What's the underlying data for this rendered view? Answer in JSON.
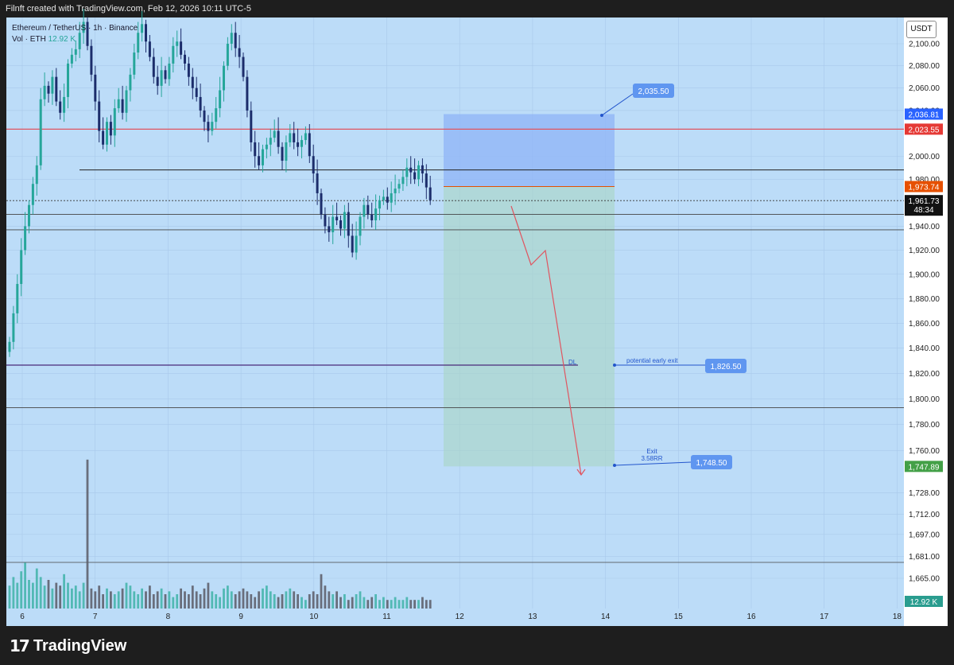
{
  "header": {
    "caption": "Filnft created with TradingView.com, Feb 12, 2026 10:11 UTC-5"
  },
  "legend": {
    "symbol": "Ethereum / TetherUS · 1h · Binance",
    "vol_label": "Vol · ETH",
    "vol_value": "12.92 K"
  },
  "unit_button": "USDT",
  "brand": "TradingView",
  "colors": {
    "background": "#bcdcf8",
    "up": "#26a69a",
    "down": "#1c2d6b",
    "resistance": "#e05560",
    "stop_label": "#e65000",
    "target_label": "#4caf50",
    "price_label": "#1e1e1e"
  },
  "annotations": {
    "label_2035": "2,035.50",
    "label_1826": "1,826.50",
    "label_1748": "1,748.50",
    "early_exit_text": "potential early exit",
    "exit_text": "Exit",
    "rr_text": "3.58RR",
    "dl_text": "DL"
  },
  "price_tags": {
    "blue": "2,036.81",
    "red": "2,023.55",
    "orange": "1,973.74",
    "current": "1,961.73",
    "countdown": "48:34",
    "green": "1,747.89",
    "volume": "12.92 K"
  },
  "chart_data": {
    "type": "candlestick",
    "title": "Ethereum / TetherUS · 1h · Binance",
    "x_ticks": [
      "6",
      "7",
      "8",
      "9",
      "10",
      "11",
      "12",
      "13",
      "14",
      "15",
      "16",
      "17",
      "18"
    ],
    "y_ticks": [
      "2,100.00",
      "2,080.00",
      "2,060.00",
      "2,040.00",
      "2,000.00",
      "1,980.00",
      "1,940.00",
      "1,920.00",
      "1,900.00",
      "1,880.00",
      "1,860.00",
      "1,840.00",
      "1,820.00",
      "1,800.00",
      "1,780.00",
      "1,760.00",
      "1,728.00",
      "1,712.00",
      "1,697.00",
      "1,681.00",
      "1,665.00"
    ],
    "y_tick_values": [
      2100,
      2080,
      2060,
      2040,
      2000,
      1980,
      1940,
      1920,
      1900,
      1880,
      1860,
      1840,
      1820,
      1800,
      1780,
      1760,
      1728,
      1712,
      1697,
      1681,
      1665
    ],
    "scale": "log",
    "closes": [
      1845,
      1868,
      1892,
      1920,
      1940,
      1958,
      1976,
      1992,
      2050,
      2062,
      2055,
      2070,
      2048,
      2038,
      2052,
      2082,
      2090,
      2095,
      2110,
      2120,
      2098,
      2072,
      2048,
      2022,
      2010,
      2030,
      2018,
      2042,
      2050,
      2038,
      2058,
      2072,
      2092,
      2110,
      2118,
      2102,
      2088,
      2070,
      2062,
      2076,
      2068,
      2082,
      2098,
      2102,
      2090,
      2082,
      2070,
      2060,
      2052,
      2040,
      2030,
      2022,
      2030,
      2042,
      2058,
      2080,
      2100,
      2110,
      2096,
      2088,
      2070,
      2040,
      2012,
      2000,
      1992,
      2006,
      2010,
      2016,
      2022,
      2008,
      1996,
      2012,
      2020,
      2012,
      2008,
      2014,
      2020,
      2000,
      1985,
      1968,
      1950,
      1940,
      1935,
      1948,
      1945,
      1938,
      1952,
      1932,
      1918,
      1932,
      1948,
      1958,
      1950,
      1945,
      1955,
      1962,
      1965,
      1960,
      1968,
      1972,
      1976,
      1982,
      1990,
      1986,
      1980,
      1992,
      1985,
      1973,
      1962
    ],
    "volumes": [
      0.8,
      1.1,
      0.9,
      1.3,
      1.6,
      1.0,
      0.9,
      1.4,
      1.1,
      0.8,
      1.0,
      0.7,
      0.9,
      0.8,
      1.2,
      0.9,
      0.7,
      0.8,
      0.6,
      0.9,
      5.2,
      0.7,
      0.6,
      0.8,
      0.5,
      0.7,
      0.6,
      0.5,
      0.6,
      0.7,
      0.9,
      0.8,
      0.6,
      0.5,
      0.7,
      0.6,
      0.8,
      0.5,
      0.6,
      0.7,
      0.5,
      0.6,
      0.4,
      0.5,
      0.7,
      0.6,
      0.5,
      0.8,
      0.6,
      0.5,
      0.7,
      0.9,
      0.6,
      0.5,
      0.4,
      0.7,
      0.8,
      0.6,
      0.5,
      0.6,
      0.7,
      0.6,
      0.5,
      0.4,
      0.6,
      0.7,
      0.8,
      0.6,
      0.5,
      0.4,
      0.5,
      0.6,
      0.7,
      0.6,
      0.5,
      0.4,
      0.3,
      0.5,
      0.6,
      0.5,
      1.2,
      0.8,
      0.6,
      0.5,
      0.6,
      0.4,
      0.5,
      0.3,
      0.4,
      0.5,
      0.6,
      0.4,
      0.3,
      0.4,
      0.5,
      0.3,
      0.4,
      0.3,
      0.3,
      0.4,
      0.3,
      0.3,
      0.4,
      0.3,
      0.3,
      0.3,
      0.4,
      0.3,
      0.3
    ],
    "levels": {
      "resistance": 2023.55,
      "stop": 1973.74,
      "entry_zone_top": 1988,
      "entry_zone_low": 1950,
      "support": 1937,
      "dl": 1826.5,
      "lower_support": 1793,
      "target": 1747.89,
      "position_top": 2036.81
    }
  }
}
